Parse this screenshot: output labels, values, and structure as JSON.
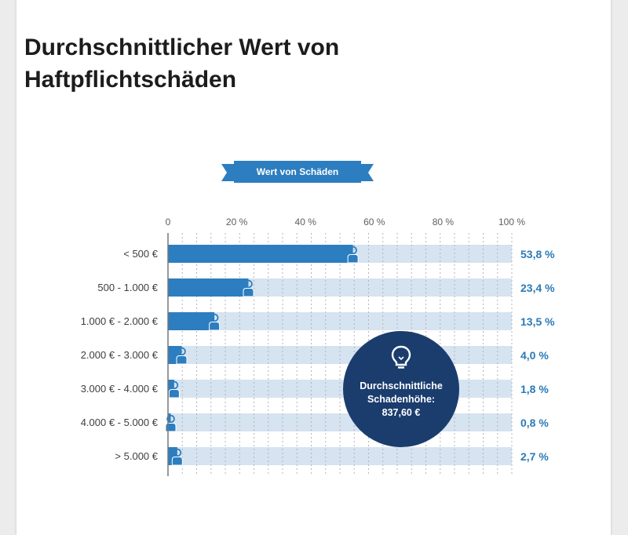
{
  "title": "Durchschnittlicher Wert von Haftpflichtschäden",
  "ribbon_label": "Wert von Schäden",
  "callout": {
    "text": "Durchschnittliche\nSchadenhöhe:\n837,60 €",
    "icon": "lightbulb-icon"
  },
  "colors": {
    "bar": "#2c7ec0",
    "track": "#d6e3f1",
    "value_text": "#2a7ab8",
    "callout_bg": "#1b3d6e",
    "ribbon": "#2c7ec0"
  },
  "chart_data": {
    "type": "bar",
    "orientation": "horizontal",
    "title": "Wert von Schäden",
    "xlim": [
      0,
      100
    ],
    "x_ticks": [
      "0",
      "20 %",
      "40 %",
      "60 %",
      "80 %",
      "100 %"
    ],
    "categories": [
      "< 500 €",
      "500 - 1.000 €",
      "1.000 € - 2.000 €",
      "2.000 € - 3.000 €",
      "3.000 € - 4.000 €",
      "4.000 € - 5.000 €",
      "> 5.000 €"
    ],
    "values": [
      53.8,
      23.4,
      13.5,
      4.0,
      1.8,
      0.8,
      2.7
    ],
    "value_labels": [
      "53,8 %",
      "23,4 %",
      "13,5 %",
      "4,0 %",
      "1,8 %",
      "0,8 %",
      "2,7 %"
    ],
    "grid": true
  }
}
